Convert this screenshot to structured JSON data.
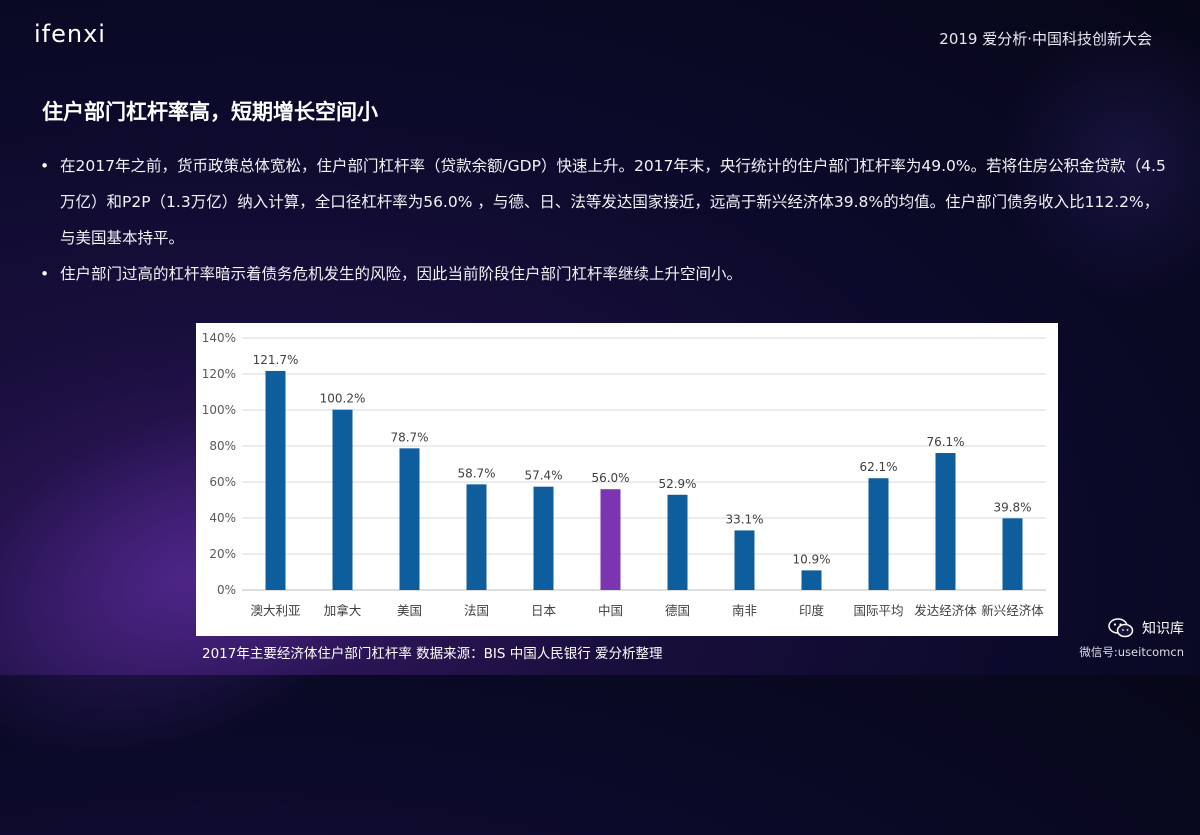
{
  "header": {
    "logo": "ifenxi",
    "event": "2019 爱分析·中国科技创新大会"
  },
  "title": "住户部门杠杆率高，短期增长空间小",
  "bullets": [
    "在2017年之前，货币政策总体宽松，住户部门杠杆率（贷款余额/GDP）快速上升。2017年末，央行统计的住户部门杠杆率为49.0%。若将住房公积金贷款（4.5万亿）和P2P（1.3万亿）纳入计算，全口径杠杆率为56.0% ，与德、日、法等发达国家接近，远高于新兴经济体39.8%的均值。住户部门债务收入比112.2%，与美国基本持平。",
    "住户部门过高的杠杆率暗示着债务危机发生的风险，因此当前阶段住户部门杠杆率继续上升空间小。"
  ],
  "chart_data": {
    "type": "bar",
    "categories": [
      "澳大利亚",
      "加拿大",
      "美国",
      "法国",
      "日本",
      "中国",
      "德国",
      "南非",
      "印度",
      "国际平均",
      "发达经济体",
      "新兴经济体"
    ],
    "values": [
      121.7,
      100.2,
      78.7,
      58.7,
      57.4,
      56.0,
      52.9,
      33.1,
      10.9,
      62.1,
      76.1,
      39.8
    ],
    "value_labels": [
      "121.7%",
      "100.2%",
      "78.7%",
      "58.7%",
      "57.4%",
      "56.0%",
      "52.9%",
      "33.1%",
      "10.9%",
      "62.1%",
      "76.1%",
      "39.8%"
    ],
    "y_ticks": [
      "0%",
      "20%",
      "40%",
      "60%",
      "80%",
      "100%",
      "120%",
      "140%"
    ],
    "ylim": [
      0,
      140
    ],
    "grid": true,
    "bar_color": "#0e5e9e",
    "highlight_category": "中国",
    "highlight_color": "#7b35b0",
    "title": "",
    "xlabel": "",
    "ylabel": ""
  },
  "caption": "2017年主要经济体住户部门杠杆率   数据来源：BIS  中国人民银行  爱分析整理",
  "watermark": {
    "name": "知识库",
    "account": "微信号:useitcomcn",
    "icon": "wechat-icon"
  }
}
